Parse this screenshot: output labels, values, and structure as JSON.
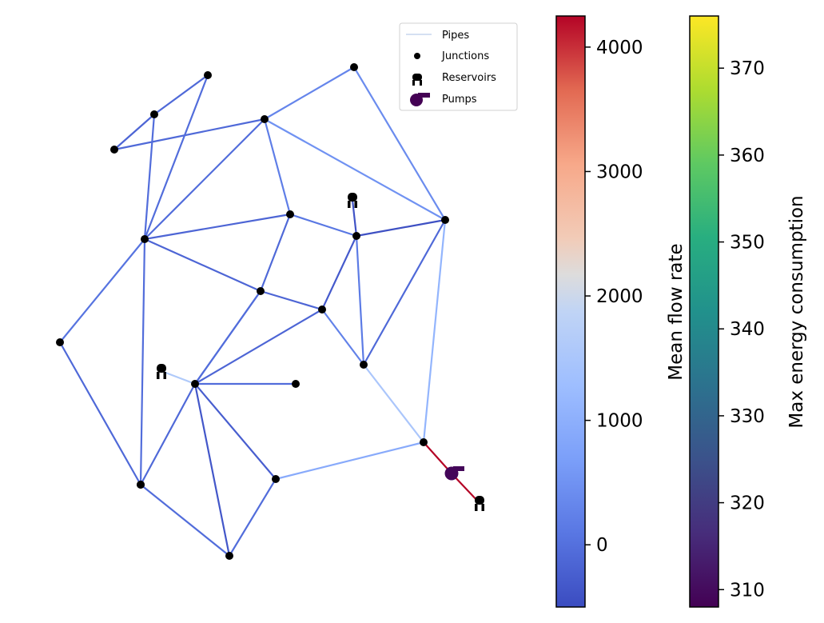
{
  "legend": {
    "pipes_label": "Pipes",
    "junctions_label": "Junctions",
    "reservoirs_label": "Reservoirs",
    "pumps_label": "Pumps"
  },
  "colorbars": {
    "flow": {
      "label": "Mean flow rate",
      "colormap": "coolwarm",
      "range": [
        -500,
        4250
      ],
      "ticks": [
        "0",
        "1000",
        "2000",
        "3000",
        "4000"
      ],
      "tick_values": [
        0,
        1000,
        2000,
        3000,
        4000
      ]
    },
    "energy": {
      "label": "Max energy consumption",
      "colormap": "viridis",
      "range": [
        308,
        376
      ],
      "ticks": [
        "310",
        "320",
        "330",
        "340",
        "350",
        "360",
        "370"
      ],
      "tick_values": [
        310,
        320,
        330,
        340,
        350,
        360,
        370
      ]
    }
  },
  "network": {
    "pipes": [
      {
        "id": "p1",
        "from": "J2",
        "to": "J3",
        "flow": -150
      },
      {
        "id": "p2",
        "from": "J2",
        "to": "J1",
        "flow": -100
      },
      {
        "id": "p3",
        "from": "J3",
        "to": "J6",
        "flow": -100
      },
      {
        "id": "p4",
        "from": "J2",
        "to": "J7",
        "flow": -50
      },
      {
        "id": "p5",
        "from": "J1",
        "to": "J7",
        "flow": -50
      },
      {
        "id": "p6",
        "from": "J6",
        "to": "J7",
        "flow": -40
      },
      {
        "id": "p7",
        "from": "J4",
        "to": "J6",
        "flow": 300
      },
      {
        "id": "p8",
        "from": "J4",
        "to": "J10",
        "flow": 400
      },
      {
        "id": "p9",
        "from": "J6",
        "to": "J9",
        "flow": 200
      },
      {
        "id": "p10",
        "from": "J6",
        "to": "J10",
        "flow": 500
      },
      {
        "id": "p11",
        "from": "J7",
        "to": "J9",
        "flow": -150
      },
      {
        "id": "p12",
        "from": "J7",
        "to": "J12",
        "flow": -150
      },
      {
        "id": "p13",
        "from": "J7",
        "to": "J14",
        "flow": -50
      },
      {
        "id": "p14",
        "from": "J7",
        "to": "J8",
        "flow": 50
      },
      {
        "id": "p15",
        "from": "J9",
        "to": "J12",
        "flow": -100
      },
      {
        "id": "p16",
        "from": "J9",
        "to": "J11",
        "flow": 100
      },
      {
        "id": "p17",
        "from": "R1",
        "to": "J11",
        "flow": -400
      },
      {
        "id": "p18",
        "from": "J11",
        "to": "J10",
        "flow": -450
      },
      {
        "id": "p19",
        "from": "J11",
        "to": "J13",
        "flow": -300
      },
      {
        "id": "p20",
        "from": "J11",
        "to": "J15",
        "flow": 150
      },
      {
        "id": "p21",
        "from": "J10",
        "to": "J15",
        "flow": -100
      },
      {
        "id": "p22",
        "from": "J10",
        "to": "J18",
        "flow": 1100
      },
      {
        "id": "p23",
        "from": "J12",
        "to": "J13",
        "flow": -150
      },
      {
        "id": "p24",
        "from": "J12",
        "to": "J16",
        "flow": -50
      },
      {
        "id": "p25",
        "from": "J13",
        "to": "J16",
        "flow": -150
      },
      {
        "id": "p26",
        "from": "J13",
        "to": "J15",
        "flow": 250
      },
      {
        "id": "p27",
        "from": "J15",
        "to": "J18",
        "flow": 1500
      },
      {
        "id": "p28",
        "from": "R2",
        "to": "J16",
        "flow": 1600
      },
      {
        "id": "p29",
        "from": "J16",
        "to": "J17",
        "flow": -100
      },
      {
        "id": "p30",
        "from": "J16",
        "to": "J19",
        "flow": -250
      },
      {
        "id": "p31",
        "from": "J16",
        "to": "J20",
        "flow": -350
      },
      {
        "id": "p32",
        "from": "J16",
        "to": "J21",
        "flow": -50
      },
      {
        "id": "p33",
        "from": "J8",
        "to": "J17",
        "flow": -100
      },
      {
        "id": "p34",
        "from": "J17",
        "to": "J20",
        "flow": -50
      },
      {
        "id": "p35",
        "from": "J20",
        "to": "J19",
        "flow": -50
      },
      {
        "id": "p36",
        "from": "J19",
        "to": "J18",
        "flow": 900
      },
      {
        "id": "p37",
        "from": "J16",
        "to": "J12",
        "flow": -50
      },
      {
        "id": "p38",
        "from": "J18",
        "to": "PU1",
        "flow": 4250
      },
      {
        "id": "p39",
        "from": "PU1",
        "to": "R3",
        "flow": 4250
      }
    ],
    "junctions": [
      "J1",
      "J2",
      "J3",
      "J4",
      "J6",
      "J7",
      "J8",
      "J9",
      "J10",
      "J11",
      "J12",
      "J13",
      "J14",
      "J15",
      "J16",
      "J17",
      "J18",
      "J19",
      "J20",
      "J21"
    ],
    "reservoirs": [
      "R1",
      "R2",
      "R3"
    ],
    "pumps": [
      {
        "id": "PU1",
        "energy": 309
      }
    ]
  }
}
